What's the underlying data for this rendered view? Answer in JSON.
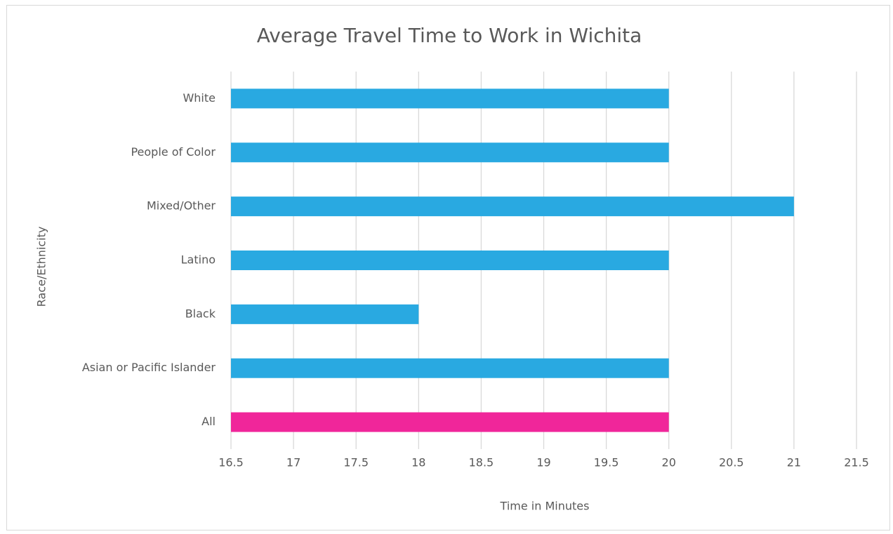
{
  "chart_data": {
    "type": "hbar",
    "title": "Average Travel Time to Work in Wichita",
    "x_label": "Time in Minutes",
    "y_label": "Race/Ethnicity",
    "categories": [
      "White",
      "People of Color",
      "Mixed/Other",
      "Latino",
      "Black",
      "Asian or Pacific Islander",
      "All"
    ],
    "values": [
      20,
      20,
      21,
      20,
      18,
      20,
      20
    ],
    "colors": [
      "#29a9e1",
      "#29a9e1",
      "#29a9e1",
      "#29a9e1",
      "#29a9e1",
      "#29a9e1",
      "#f0269a"
    ],
    "xlim": [
      16.5,
      21.5
    ],
    "xticks": [
      16.5,
      17,
      17.5,
      18,
      18.5,
      19,
      19.5,
      20,
      20.5,
      21,
      21.5
    ],
    "grid": true
  }
}
